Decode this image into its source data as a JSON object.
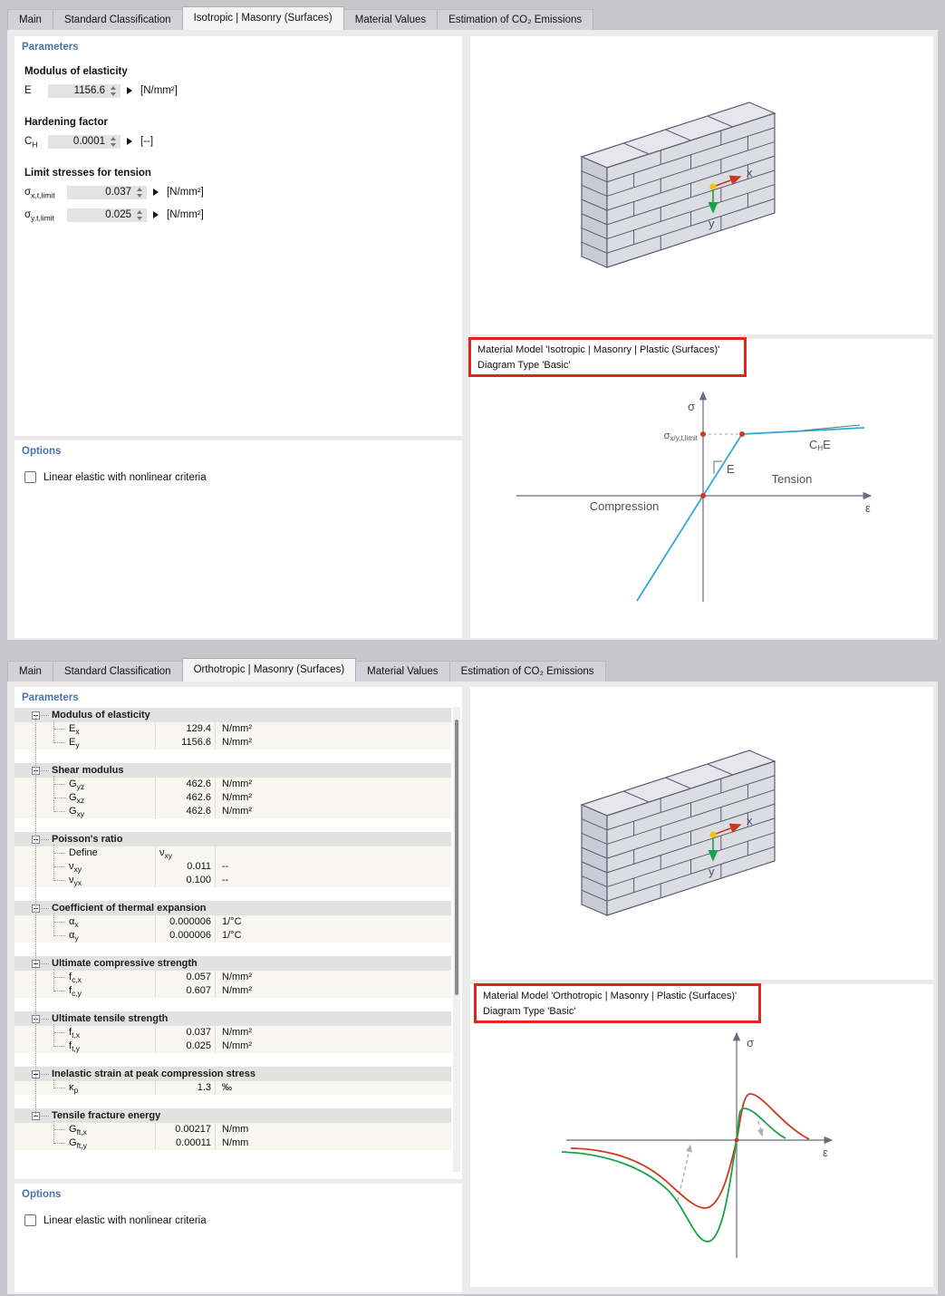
{
  "wall": {
    "x_label": "x",
    "y_label": "y"
  },
  "colors": {
    "section_header": "#4a72a8",
    "annotation_border": "#e1251b",
    "curve_blue": "#2fa8dc",
    "curve_red": "#cc3a1e",
    "curve_green": "#17a347",
    "wall_origin_dot": "#f2c500"
  },
  "panel_top": {
    "tabs": [
      {
        "label": "Main",
        "active": false
      },
      {
        "label": "Standard Classification",
        "active": false
      },
      {
        "label": "Isotropic | Masonry (Surfaces)",
        "active": true
      },
      {
        "label": "Material Values",
        "active": false
      },
      {
        "label": "Estimation of CO₂ Emissions",
        "active": false
      }
    ],
    "parameters": {
      "header": "Parameters",
      "modulus_group": {
        "label": "Modulus of elasticity",
        "field": {
          "sym": "E",
          "sub": "",
          "value": "1156.6",
          "unit": "[N/mm²]"
        }
      },
      "hardening_group": {
        "label": "Hardening factor",
        "field": {
          "sym": "C",
          "sub": "H",
          "value": "0.0001",
          "unit": "[--]"
        }
      },
      "tension_group": {
        "label": "Limit stresses for tension",
        "field_x": {
          "sym": "σ",
          "sub": "x,t,limit",
          "value": "0.037",
          "unit": "[N/mm²]"
        },
        "field_y": {
          "sym": "σ",
          "sub": "y,t,limit",
          "value": "0.025",
          "unit": "[N/mm²]"
        }
      }
    },
    "options": {
      "header": "Options",
      "checkbox_label": "Linear elastic with nonlinear criteria",
      "checked": false
    },
    "annotation": {
      "line1": "Material Model 'Isotropic | Masonry | Plastic (Surfaces)'",
      "line2": "Diagram Type 'Basic'"
    },
    "diagram": {
      "sigma_axis": "σ",
      "epsilon_axis": "ε",
      "limit_base": "σ",
      "limit_sub": "x/y,t,limit",
      "slope_c": "C",
      "slope_c_sub": "H",
      "slope_e": "E",
      "e_label": "E",
      "tension": "Tension",
      "compression": "Compression"
    }
  },
  "panel_bottom": {
    "tabs": [
      {
        "label": "Main",
        "active": false
      },
      {
        "label": "Standard Classification",
        "active": false
      },
      {
        "label": "Orthotropic | Masonry (Surfaces)",
        "active": true
      },
      {
        "label": "Material Values",
        "active": false
      },
      {
        "label": "Estimation of CO₂ Emissions",
        "active": false
      }
    ],
    "parameters": {
      "header": "Parameters",
      "sections": [
        {
          "title": "Modulus of elasticity",
          "rows": [
            {
              "sym": "E",
              "sub": "x",
              "value": "129.4",
              "unit": "N/mm²"
            },
            {
              "sym": "E",
              "sub": "y",
              "value": "1156.6",
              "unit": "N/mm²"
            }
          ]
        },
        {
          "title": "Shear modulus",
          "rows": [
            {
              "sym": "G",
              "sub": "yz",
              "value": "462.6",
              "unit": "N/mm²"
            },
            {
              "sym": "G",
              "sub": "xz",
              "value": "462.6",
              "unit": "N/mm²"
            },
            {
              "sym": "G",
              "sub": "xy",
              "value": "462.6",
              "unit": "N/mm²"
            }
          ]
        },
        {
          "title": "Poisson's ratio",
          "rows": [
            {
              "sym": "Define",
              "sub": "",
              "value": "ν",
              "value_sub": "xy",
              "unit": "",
              "define": true
            },
            {
              "sym": "ν",
              "sub": "xy",
              "value": "0.011",
              "unit": "--"
            },
            {
              "sym": "ν",
              "sub": "yx",
              "value": "0.100",
              "unit": "--"
            }
          ]
        },
        {
          "title": "Coefficient of thermal expansion",
          "rows": [
            {
              "sym": "α",
              "sub": "x",
              "value": "0.000006",
              "unit": "1/°C"
            },
            {
              "sym": "α",
              "sub": "y",
              "value": "0.000006",
              "unit": "1/°C"
            }
          ]
        },
        {
          "title": "Ultimate compressive strength",
          "rows": [
            {
              "sym": "f",
              "sub": "c,x",
              "value": "0.057",
              "unit": "N/mm²"
            },
            {
              "sym": "f",
              "sub": "c,y",
              "value": "0.607",
              "unit": "N/mm²"
            }
          ]
        },
        {
          "title": "Ultimate tensile strength",
          "rows": [
            {
              "sym": "f",
              "sub": "t,x",
              "value": "0.037",
              "unit": "N/mm²"
            },
            {
              "sym": "f",
              "sub": "t,y",
              "value": "0.025",
              "unit": "N/mm²"
            }
          ]
        },
        {
          "title": "Inelastic strain at peak compression stress",
          "rows": [
            {
              "sym": "κ",
              "sub": "p",
              "value": "1.3",
              "unit": "‰"
            }
          ]
        },
        {
          "title": "Tensile fracture energy",
          "rows": [
            {
              "sym": "G",
              "sub": "ft,x",
              "value": "0.00217",
              "unit": "N/mm"
            },
            {
              "sym": "G",
              "sub": "ft,y",
              "value": "0.00011",
              "unit": "N/mm"
            }
          ]
        }
      ]
    },
    "options": {
      "header": "Options",
      "checkbox_label": "Linear elastic with nonlinear criteria",
      "checked": false
    },
    "annotation": {
      "line1": "Material Model 'Orthotropic | Masonry | Plastic (Surfaces)'",
      "line2": "Diagram Type 'Basic'"
    },
    "diagram": {
      "sigma_axis": "σ",
      "epsilon_axis": "ε"
    }
  }
}
